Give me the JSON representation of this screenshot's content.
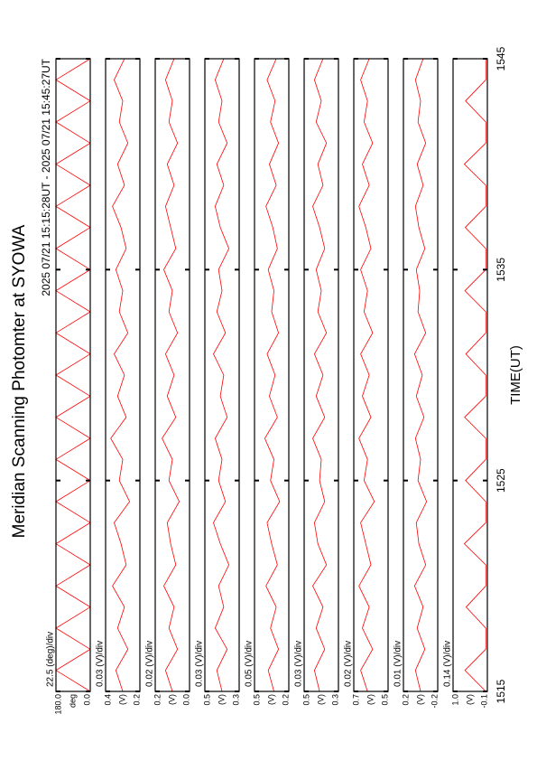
{
  "chart_data": {
    "type": "line",
    "title": "Meridian Scanning Photomter at SYOWA",
    "subtitle": "2025 07/21 15:15:28UT - 2025 07/21 15:45:27UT",
    "x_label": "TIME(UT)",
    "x": [
      1515,
      1516,
      1517,
      1518,
      1519,
      1520,
      1521,
      1522,
      1523,
      1524,
      1525,
      1526,
      1527,
      1528,
      1529,
      1530,
      1531,
      1532,
      1533,
      1534,
      1535,
      1536,
      1537,
      1538,
      1539,
      1540,
      1541,
      1542,
      1543,
      1544,
      1545
    ],
    "xlim": [
      1515,
      1545
    ],
    "xticks": [
      1515,
      1525,
      1535,
      1545
    ],
    "panels": [
      {
        "scale_label": "22.5 (deg)/div",
        "y_label": "deg",
        "ylim": [
          0,
          180
        ],
        "yticks": [
          {
            "value": 180,
            "label": "180.0"
          },
          {
            "value": 0,
            "label": "0.0"
          }
        ],
        "color": "#ff0000",
        "values": [
          0,
          180,
          0,
          180,
          0,
          180,
          0,
          180,
          0,
          180,
          0,
          180,
          0,
          180,
          0,
          180,
          0,
          180,
          0,
          180,
          0,
          180,
          0,
          180,
          0,
          180,
          0,
          180,
          0,
          180,
          0
        ]
      },
      {
        "scale_label": "0.03 (V)/div",
        "y_label": "(V)",
        "ylim": [
          0.2,
          0.4
        ],
        "yticks": [
          0.4,
          0.2
        ],
        "color": "#ff0000",
        "values": [
          0.3,
          0.34,
          0.27,
          0.33,
          0.29,
          0.36,
          0.28,
          0.31,
          0.35,
          0.26,
          0.32,
          0.3,
          0.37,
          0.28,
          0.33,
          0.29,
          0.35,
          0.27,
          0.32,
          0.3,
          0.34,
          0.28,
          0.31,
          0.36,
          0.29,
          0.33,
          0.27,
          0.32,
          0.3,
          0.35,
          0.29
        ]
      },
      {
        "scale_label": "0.02 (V)/div",
        "y_label": "(V)",
        "ylim": [
          0,
          0.2
        ],
        "yticks": [
          0.2,
          {
            "value": 0,
            "label": "0.0"
          }
        ],
        "color": "#ff0000",
        "values": [
          0.1,
          0.14,
          0.07,
          0.12,
          0.09,
          0.15,
          0.08,
          0.11,
          0.13,
          0.06,
          0.12,
          0.1,
          0.16,
          0.08,
          0.13,
          0.09,
          0.14,
          0.07,
          0.12,
          0.1,
          0.15,
          0.08,
          0.11,
          0.14,
          0.09,
          0.13,
          0.07,
          0.12,
          0.1,
          0.14,
          0.09
        ]
      },
      {
        "scale_label": "0.03 (V)/div",
        "y_label": "(V)",
        "ylim": [
          0.3,
          0.5
        ],
        "yticks": [
          0.5,
          0.3
        ],
        "color": "#ff0000",
        "values": [
          0.4,
          0.43,
          0.37,
          0.44,
          0.39,
          0.42,
          0.36,
          0.41,
          0.45,
          0.38,
          0.42,
          0.4,
          0.44,
          0.37,
          0.41,
          0.39,
          0.45,
          0.38,
          0.43,
          0.4,
          0.42,
          0.36,
          0.41,
          0.44,
          0.39,
          0.43,
          0.37,
          0.42,
          0.4,
          0.44,
          0.39
        ]
      },
      {
        "scale_label": "0.05 (V)/div",
        "y_label": "(V)",
        "ylim": [
          0.2,
          0.5
        ],
        "yticks": [
          0.5,
          0.2
        ],
        "color": "#ff0000",
        "values": [
          0.33,
          0.38,
          0.29,
          0.36,
          0.31,
          0.4,
          0.3,
          0.35,
          0.39,
          0.28,
          0.36,
          0.33,
          0.41,
          0.3,
          0.37,
          0.32,
          0.39,
          0.29,
          0.35,
          0.33,
          0.38,
          0.3,
          0.34,
          0.4,
          0.31,
          0.37,
          0.29,
          0.36,
          0.32,
          0.39,
          0.31
        ]
      },
      {
        "scale_label": "0.03 (V)/div",
        "y_label": "(V)",
        "ylim": [
          0.3,
          0.5
        ],
        "yticks": [
          0.5,
          0.3
        ],
        "color": "#ff0000",
        "values": [
          0.41,
          0.44,
          0.38,
          0.43,
          0.39,
          0.45,
          0.37,
          0.42,
          0.44,
          0.38,
          0.41,
          0.4,
          0.45,
          0.38,
          0.43,
          0.39,
          0.44,
          0.37,
          0.42,
          0.4,
          0.43,
          0.38,
          0.41,
          0.45,
          0.39,
          0.42,
          0.37,
          0.43,
          0.4,
          0.44,
          0.39
        ]
      },
      {
        "scale_label": "0.02 (V)/div",
        "y_label": "(V)",
        "ylim": [
          0.5,
          0.7
        ],
        "yticks": [
          0.7,
          0.5
        ],
        "color": "#ff0000",
        "values": [
          0.62,
          0.66,
          0.59,
          0.65,
          0.61,
          0.67,
          0.6,
          0.63,
          0.66,
          0.58,
          0.64,
          0.62,
          0.67,
          0.6,
          0.65,
          0.61,
          0.66,
          0.59,
          0.64,
          0.62,
          0.66,
          0.6,
          0.63,
          0.67,
          0.61,
          0.65,
          0.59,
          0.64,
          0.62,
          0.66,
          0.61
        ]
      },
      {
        "scale_label": "0.01 (V)/div",
        "y_label": "(V)",
        "ylim": [
          -0.2,
          0.2
        ],
        "yticks": [
          0.2,
          -0.2
        ],
        "color": "#ff0000",
        "values": [
          0.0,
          0.06,
          -0.05,
          0.04,
          -0.03,
          0.07,
          -0.06,
          0.02,
          0.05,
          -0.07,
          0.03,
          0.0,
          0.06,
          -0.04,
          0.05,
          -0.02,
          0.07,
          -0.06,
          0.03,
          0.01,
          0.05,
          -0.05,
          0.02,
          0.06,
          -0.03,
          0.04,
          -0.06,
          0.03,
          0.0,
          0.06,
          -0.03
        ]
      },
      {
        "scale_label": "0.14 (V)/div",
        "y_label": "(V)",
        "ylim": [
          -0.1,
          1.0
        ],
        "yticks": [
          {
            "value": 1.0,
            "label": "1.0"
          },
          -0.1
        ],
        "color": "#ff0000",
        "values": [
          -0.05,
          0.62,
          -0.05,
          -0.05,
          0.58,
          -0.05,
          -0.05,
          0.64,
          -0.05,
          -0.05,
          0.6,
          -0.05,
          -0.05,
          0.63,
          -0.05,
          -0.05,
          0.59,
          -0.05,
          -0.05,
          0.62,
          -0.05,
          -0.05,
          0.61,
          -0.05,
          -0.05,
          0.64,
          -0.05,
          -0.05,
          0.6,
          -0.05,
          -0.05
        ]
      }
    ]
  }
}
